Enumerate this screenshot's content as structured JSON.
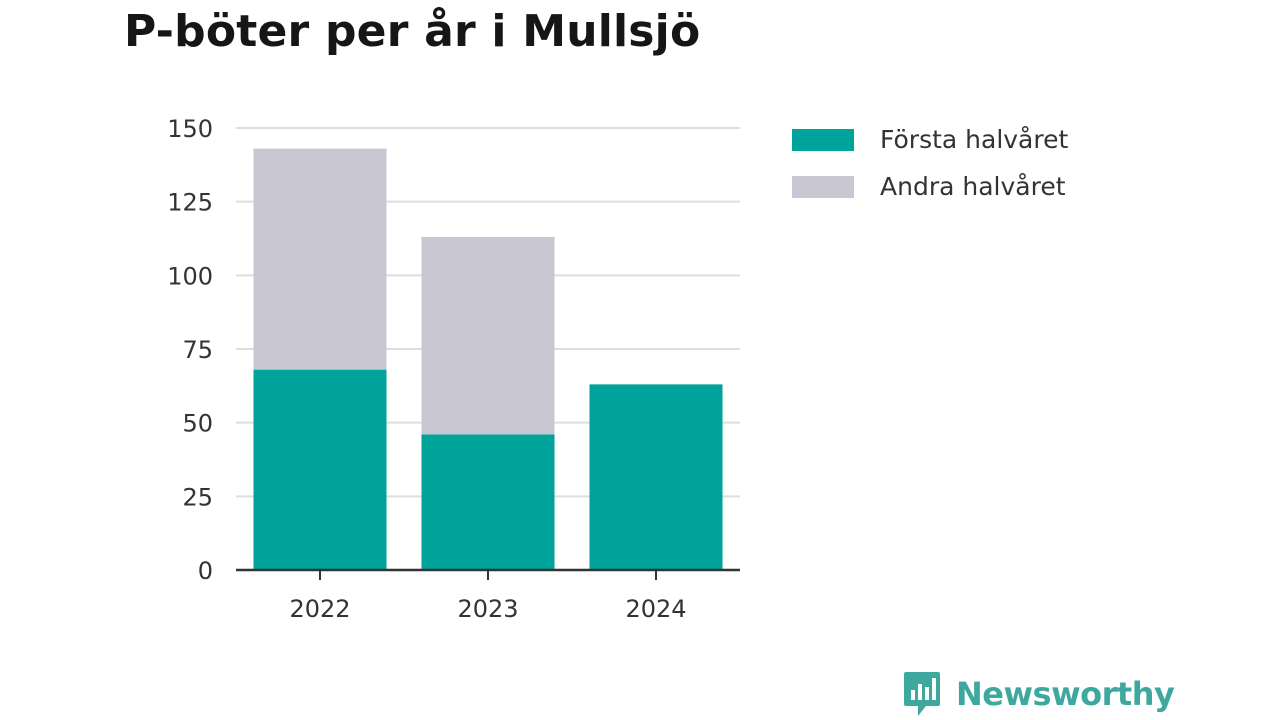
{
  "chart_data": {
    "type": "bar",
    "stacked": true,
    "title": "P-böter per år i Mullsjö",
    "categories": [
      "2022",
      "2023",
      "2024"
    ],
    "series": [
      {
        "name": "Första halvåret",
        "color": "#00a39a",
        "values": [
          68,
          46,
          63
        ]
      },
      {
        "name": "Andra halvåret",
        "color": "#c8c7d3",
        "values": [
          75,
          67,
          0
        ]
      }
    ],
    "ylim": [
      0,
      150
    ],
    "yticks": [
      0,
      25,
      50,
      75,
      100,
      125,
      150
    ],
    "grid": true,
    "legend_position": "top-right"
  },
  "branding": {
    "name": "Newsworthy",
    "icon": "newsworthy-logo-icon",
    "color": "#3fa89e"
  }
}
